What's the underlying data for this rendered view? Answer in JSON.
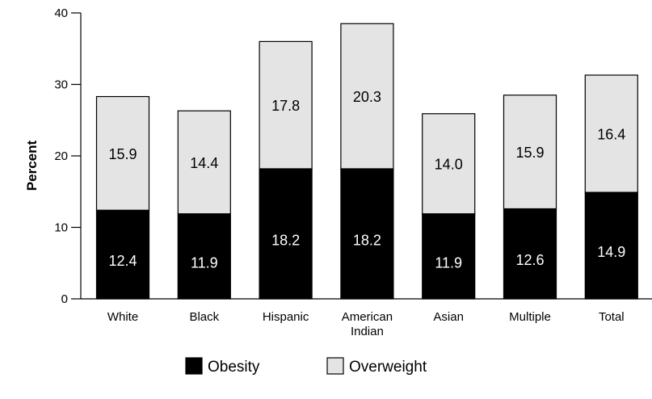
{
  "chart_data": {
    "type": "bar",
    "stacked": true,
    "categories": [
      [
        "White"
      ],
      [
        "Black"
      ],
      [
        "Hispanic"
      ],
      [
        "American",
        "Indian"
      ],
      [
        "Asian"
      ],
      [
        "Multiple"
      ],
      [
        "Total"
      ]
    ],
    "series": [
      {
        "name": "Obesity",
        "color": "#000000",
        "label_color": "#ffffff",
        "values": [
          12.4,
          11.9,
          18.2,
          18.2,
          11.9,
          12.6,
          14.9
        ]
      },
      {
        "name": "Overweight",
        "color": "#e4e4e4",
        "label_color": "#000000",
        "values": [
          15.9,
          14.4,
          17.8,
          20.3,
          14.0,
          15.9,
          16.4
        ]
      }
    ],
    "xlabel": "",
    "ylabel": "Percent",
    "ylim": [
      0,
      40
    ],
    "yticks": [
      0,
      10,
      20,
      30,
      40
    ],
    "grid": false,
    "legend_position": "bottom"
  }
}
